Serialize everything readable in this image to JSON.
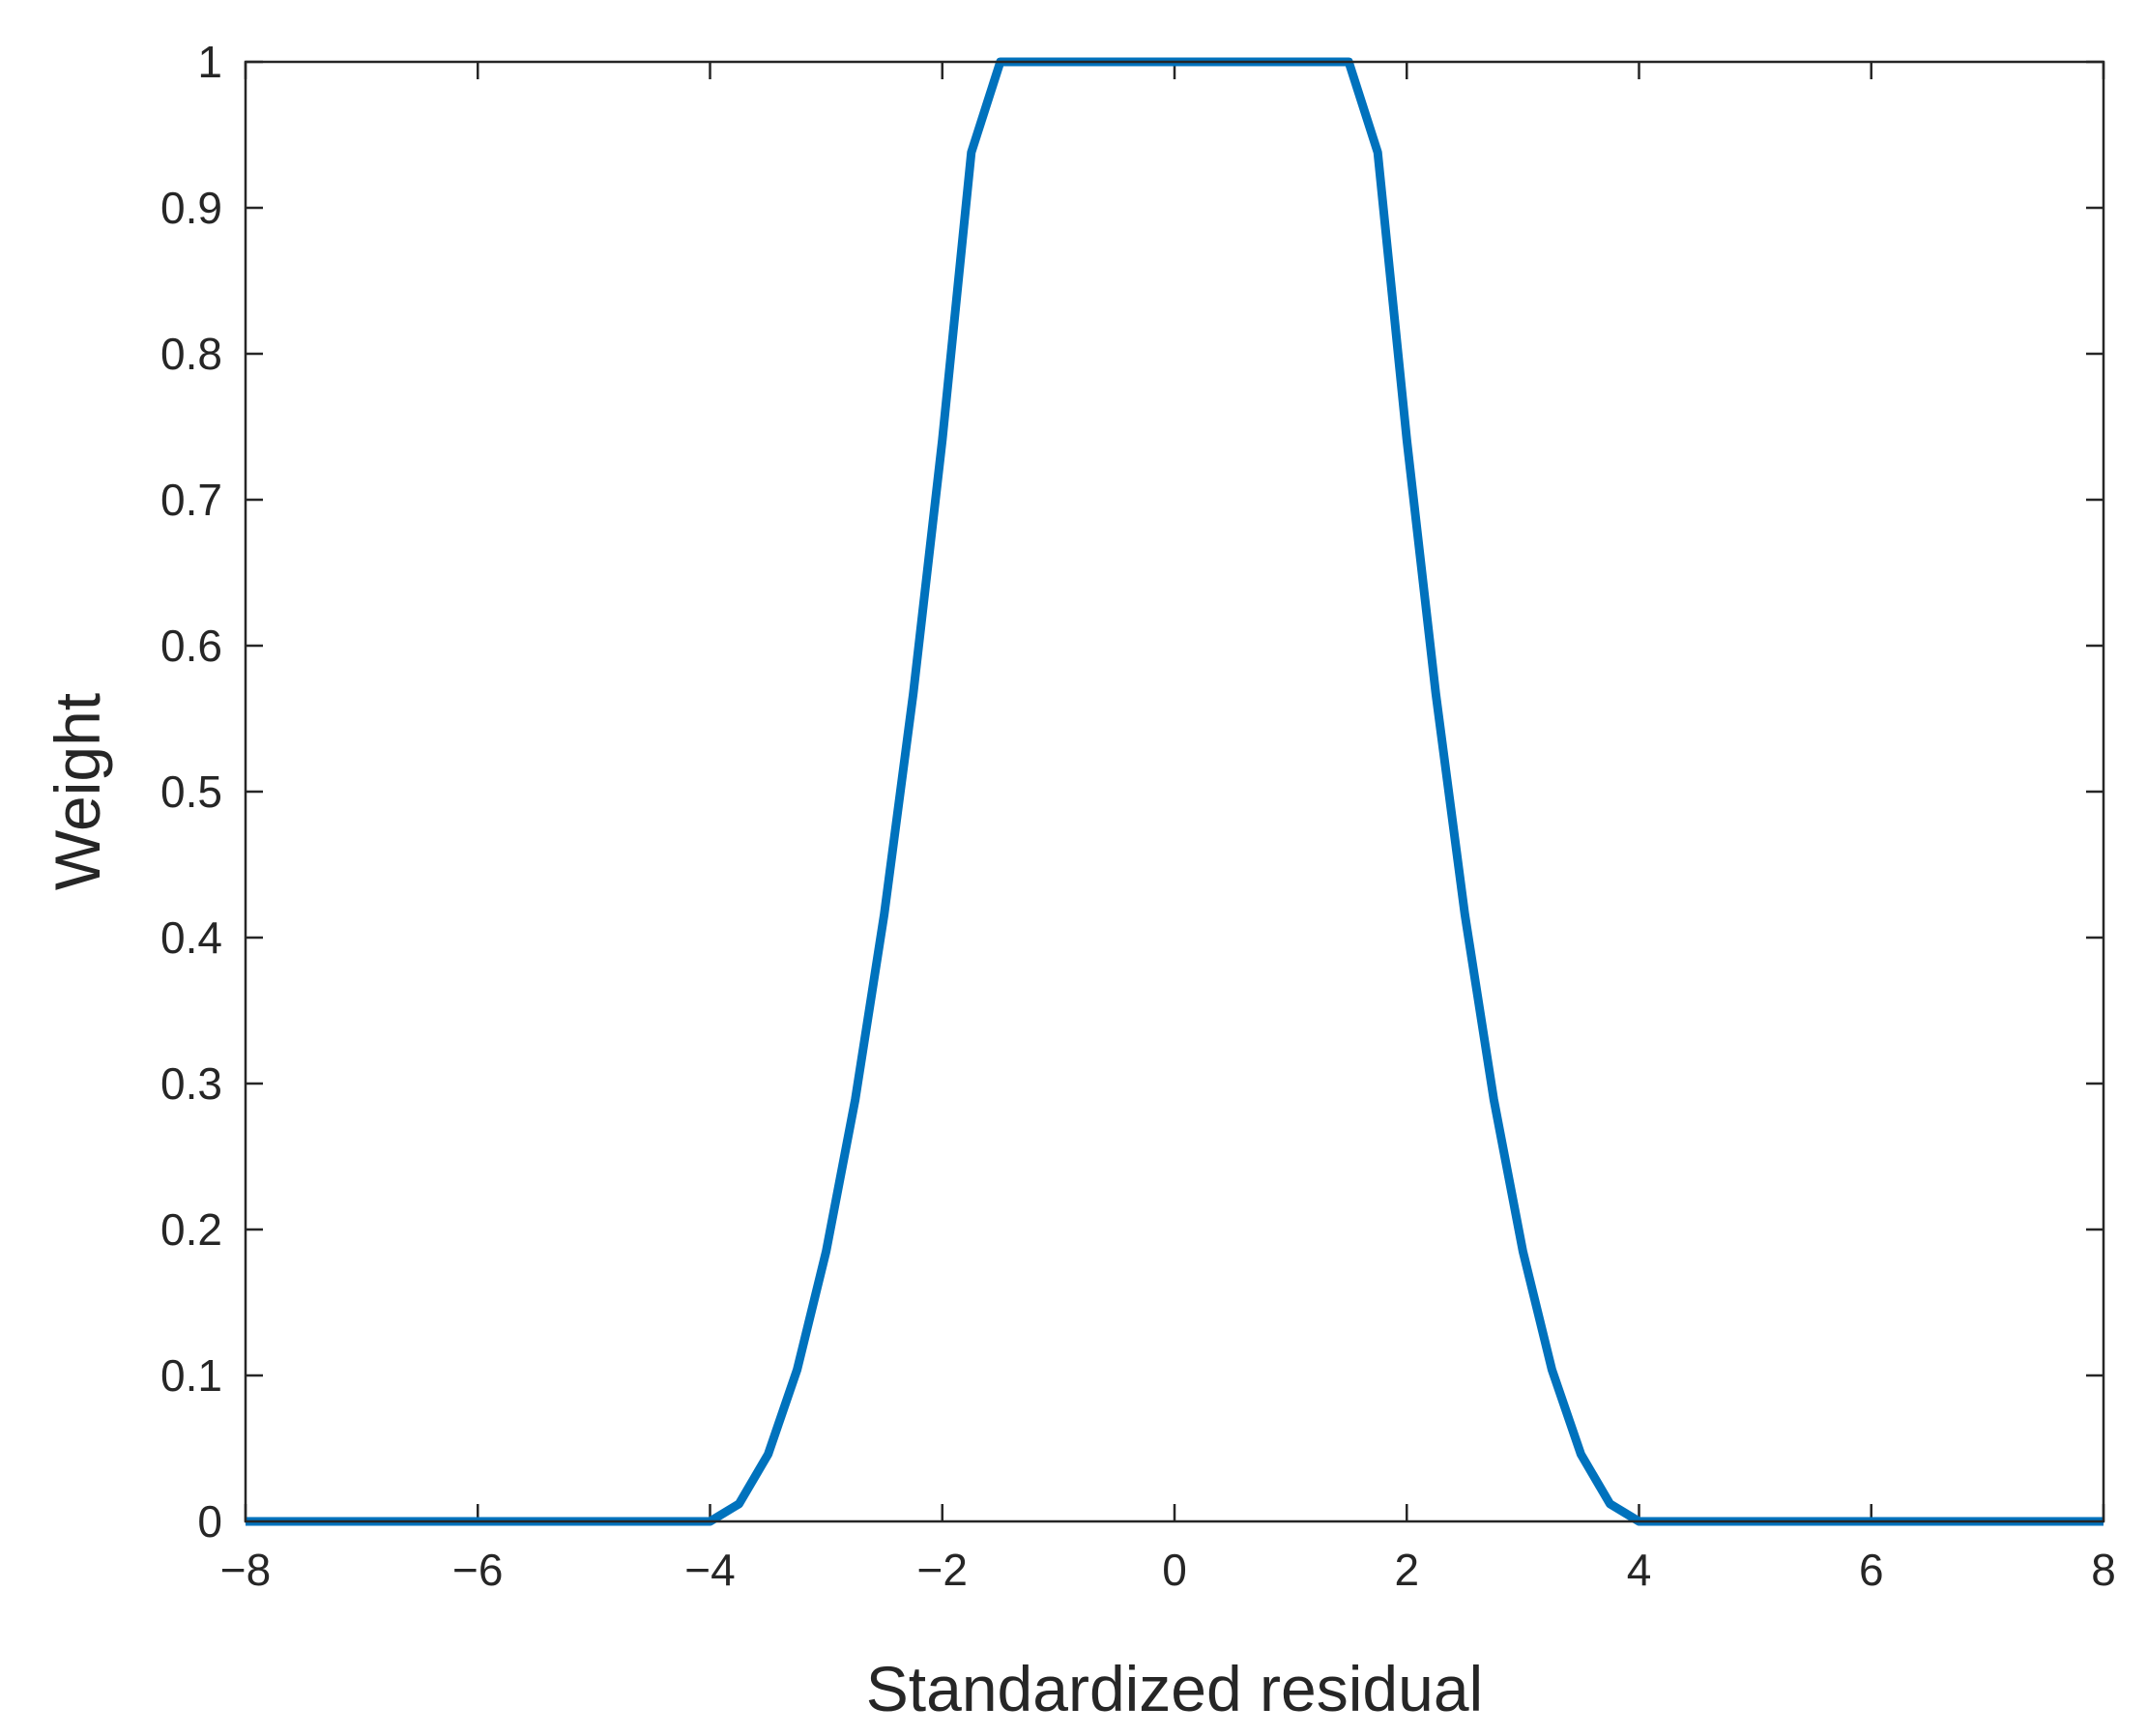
{
  "chart_data": {
    "type": "line",
    "title": "",
    "xlabel": "Standardized residual",
    "ylabel": "Weight",
    "xlim": [
      -8,
      8
    ],
    "ylim": [
      0,
      1
    ],
    "xticks": [
      -8,
      -6,
      -4,
      -2,
      0,
      2,
      4,
      6,
      8
    ],
    "xtick_labels": [
      "−8",
      "−6",
      "−4",
      "−2",
      "0",
      "2",
      "4",
      "6",
      "8"
    ],
    "yticks": [
      0,
      0.1,
      0.2,
      0.3,
      0.4,
      0.5,
      0.6,
      0.7,
      0.8,
      0.9,
      1
    ],
    "ytick_labels": [
      "0",
      "0.1",
      "0.2",
      "0.3",
      "0.4",
      "0.5",
      "0.6",
      "0.7",
      "0.8",
      "0.9",
      "1"
    ],
    "grid": false,
    "colors": {
      "line": "#0072BD",
      "axes": "#262626"
    },
    "series": [
      {
        "x": [
          -8,
          -6,
          -4,
          -3.75,
          -3.5,
          -3.25,
          -3,
          -2.75,
          -2.5,
          -2.25,
          -2,
          -1.75,
          -1.5,
          0,
          1.5,
          1.75,
          2,
          2.25,
          2.5,
          2.75,
          3,
          3.25,
          3.5,
          3.75,
          4,
          6,
          8
        ],
        "y": [
          0,
          0,
          0,
          0.012,
          0.046,
          0.104,
          0.185,
          0.289,
          0.416,
          0.567,
          0.741,
          0.938,
          1,
          1,
          1,
          0.938,
          0.741,
          0.567,
          0.416,
          0.289,
          0.185,
          0.104,
          0.046,
          0.012,
          0,
          0,
          0
        ]
      }
    ]
  }
}
